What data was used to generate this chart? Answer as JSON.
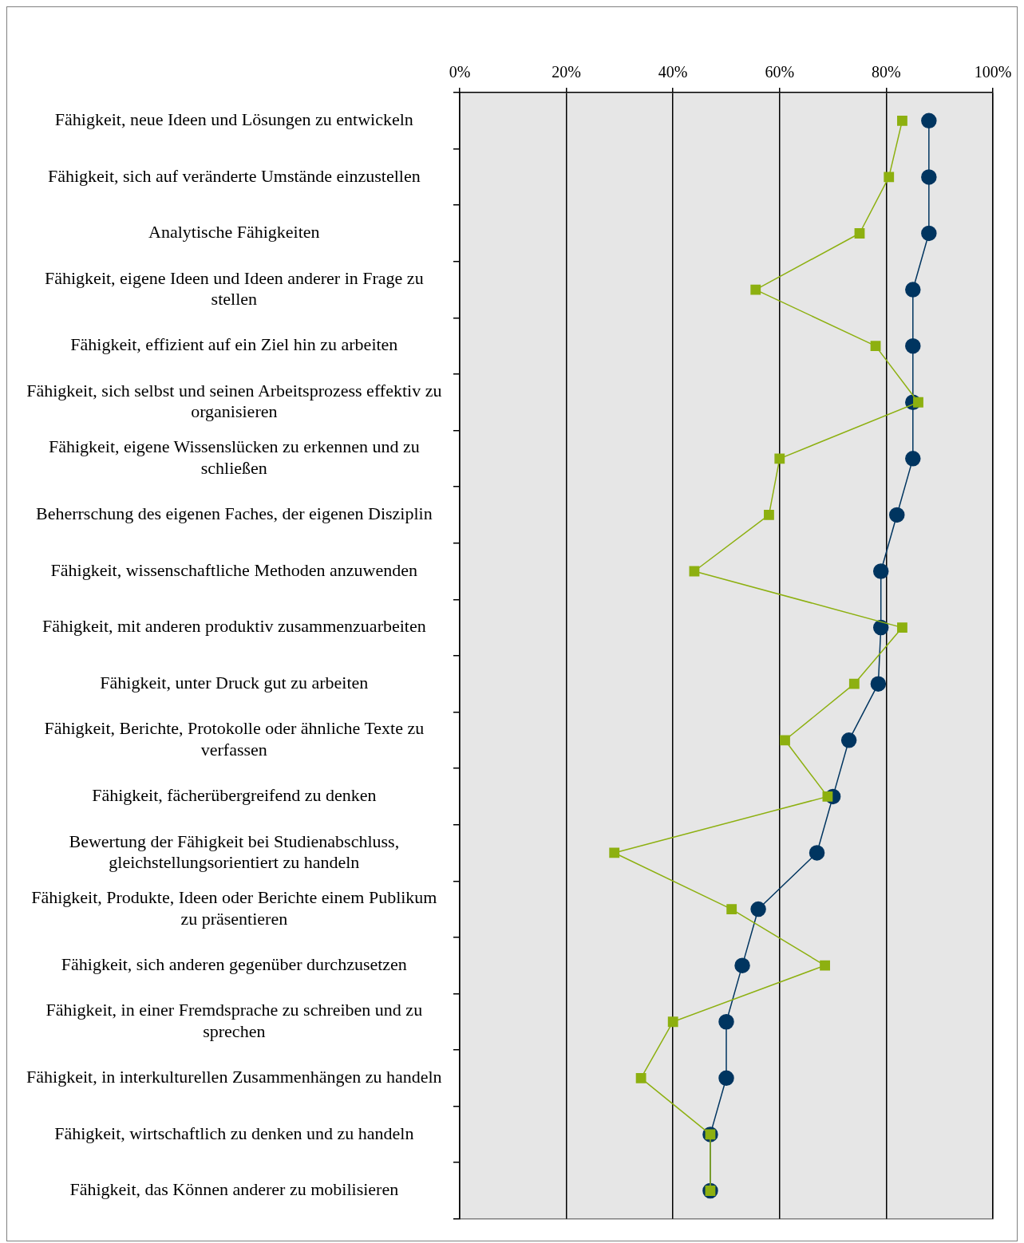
{
  "chart_data": {
    "type": "line",
    "orientation": "horizontal",
    "categories": [
      "Fähigkeit, neue Ideen und Lösungen zu entwickeln",
      "Fähigkeit, sich auf veränderte Umstände einzustellen",
      "Analytische Fähigkeiten",
      "Fähigkeit, eigene Ideen und Ideen anderer in Frage zu stellen",
      "Fähigkeit, effizient auf ein Ziel hin zu arbeiten",
      "Fähigkeit, sich selbst und seinen Arbeitsprozess effektiv zu organisieren",
      "Fähigkeit, eigene Wissenslücken zu erkennen und zu schließen",
      "Beherrschung des eigenen Faches, der eigenen Disziplin",
      "Fähigkeit, wissenschaftliche Methoden anzuwenden",
      "Fähigkeit, mit anderen produktiv zusammenzuarbeiten",
      "Fähigkeit, unter Druck gut zu arbeiten",
      "Fähigkeit, Berichte, Protokolle oder ähnliche Texte zu verfassen",
      "Fähigkeit, fächerübergreifend zu denken",
      "Bewertung der Fähigkeit bei Studienabschluss, gleichstellungsorientiert zu handeln",
      "Fähigkeit, Produkte, Ideen oder Berichte einem Publikum zu präsentieren",
      "Fähigkeit, sich anderen gegenüber durchzusetzen",
      "Fähigkeit, in einer Fremdsprache zu schreiben und zu sprechen",
      "Fähigkeit, in interkulturellen Zusammenhängen zu handeln",
      "Fähigkeit, wirtschaftlich zu denken und zu handeln",
      "Fähigkeit, das Können anderer zu mobilisieren"
    ],
    "series": [
      {
        "color": "#003560",
        "marker": "circle",
        "values": [
          88,
          88,
          88,
          85,
          85,
          85,
          85,
          82,
          79,
          79,
          78.5,
          73,
          70,
          67,
          56,
          53,
          50,
          50,
          47,
          47
        ]
      },
      {
        "color": "#8db010",
        "marker": "square",
        "values": [
          83,
          80.5,
          75,
          55.5,
          78,
          86,
          60,
          58,
          44,
          83,
          74,
          61,
          69,
          29,
          51,
          68.5,
          40,
          34,
          47,
          47
        ]
      }
    ],
    "xlim": [
      0,
      100
    ],
    "xticks": [
      {
        "value": 0,
        "label": "0%"
      },
      {
        "value": 20,
        "label": "20%"
      },
      {
        "value": 40,
        "label": "40%"
      },
      {
        "value": 60,
        "label": "60%"
      },
      {
        "value": 80,
        "label": "80%"
      },
      {
        "value": 100,
        "label": "100%"
      }
    ],
    "grid": "x"
  }
}
